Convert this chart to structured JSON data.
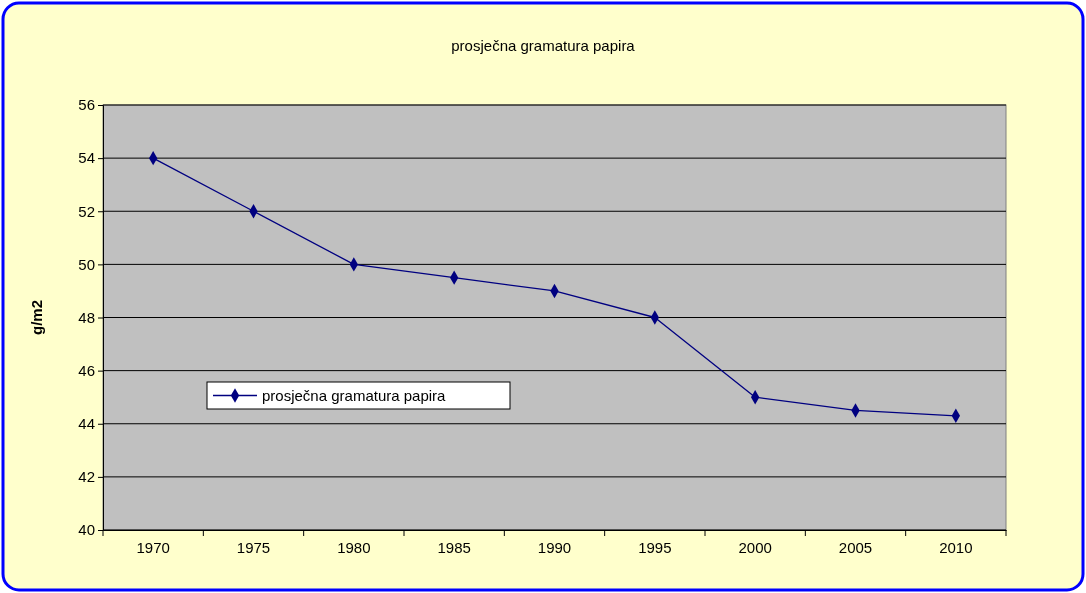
{
  "chart_data": {
    "type": "line",
    "title": "prosječna gramatura papira",
    "ylabel": "g/m2",
    "categories": [
      "1970",
      "1975",
      "1980",
      "1985",
      "1990",
      "1995",
      "2000",
      "2005",
      "2010"
    ],
    "series": [
      {
        "name": "prosječna gramatura papira",
        "color": "#000080",
        "values": [
          54,
          52,
          50,
          49.5,
          49,
          48,
          45,
          44.5,
          44.3
        ]
      }
    ],
    "ylim": [
      40,
      56
    ],
    "yticks": [
      40,
      42,
      44,
      46,
      48,
      50,
      52,
      54,
      56
    ],
    "grid": "y",
    "legend": "left",
    "marker": "diamond",
    "line_style": "solid"
  }
}
